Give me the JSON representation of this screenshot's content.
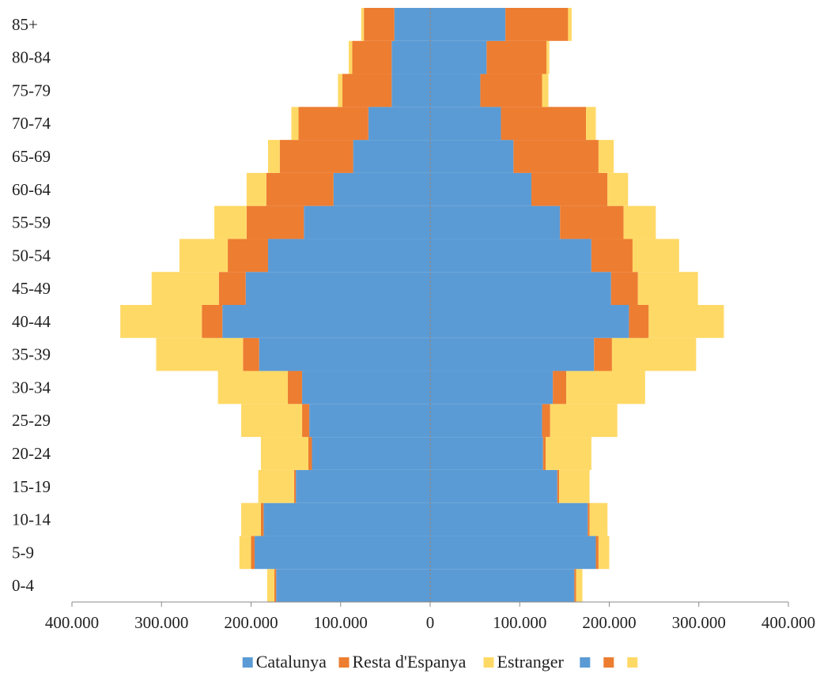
{
  "chart_data": {
    "type": "bar",
    "orientation": "horizontal",
    "layout": "population-pyramid (left side negative, right side positive, stacked)",
    "categories": [
      "0-4",
      "5-9",
      "10-14",
      "15-19",
      "20-24",
      "25-29",
      "30-34",
      "35-39",
      "40-44",
      "45-49",
      "50-54",
      "55-59",
      "60-64",
      "65-69",
      "70-74",
      "75-79",
      "80-84",
      "85+"
    ],
    "xlim": [
      -400000,
      400000
    ],
    "x_ticks": [
      {
        "value": -400000,
        "label": "400.000"
      },
      {
        "value": -300000,
        "label": "300.000"
      },
      {
        "value": -200000,
        "label": "200.000"
      },
      {
        "value": -100000,
        "label": "100.000"
      },
      {
        "value": 0,
        "label": "0"
      },
      {
        "value": 100000,
        "label": "100.000"
      },
      {
        "value": 200000,
        "label": "200.000"
      },
      {
        "value": 300000,
        "label": "300.000"
      },
      {
        "value": 400000,
        "label": "400.000"
      }
    ],
    "colors": {
      "Catalunya": "#5b9bd5",
      "Resta d'Espanya": "#ed7d31",
      "Estranger": "#ffd966"
    },
    "left_series": [
      {
        "name": "Catalunya",
        "values": [
          -172000,
          -196000,
          -186000,
          -150000,
          -132000,
          -135000,
          -143000,
          -191000,
          -232000,
          -206000,
          -181000,
          -141000,
          -108000,
          -86000,
          -69000,
          -43000,
          -43000,
          -40000
        ]
      },
      {
        "name": "Resta d'Espanya",
        "values": [
          -2000,
          -4000,
          -3000,
          -2000,
          -4000,
          -8000,
          -16000,
          -18000,
          -23000,
          -30000,
          -45000,
          -64000,
          -75000,
          -82000,
          -78000,
          -55000,
          -44000,
          -34000
        ]
      },
      {
        "name": "Estranger",
        "values": [
          -8000,
          -13000,
          -22000,
          -40000,
          -53000,
          -68000,
          -78000,
          -97000,
          -91000,
          -75000,
          -54000,
          -36000,
          -22000,
          -13000,
          -8000,
          -5000,
          -4000,
          -3000
        ]
      }
    ],
    "right_series": [
      {
        "name": "",
        "color_key": "Catalunya",
        "values": [
          161000,
          185000,
          176000,
          142000,
          126000,
          125000,
          137000,
          183000,
          222000,
          202000,
          180000,
          145000,
          113000,
          93000,
          79000,
          56000,
          63000,
          84000
        ]
      },
      {
        "name": "",
        "color_key": "Resta d'Espanya",
        "values": [
          2000,
          3000,
          2000,
          2000,
          3000,
          9000,
          15000,
          20000,
          22000,
          30000,
          46000,
          71000,
          85000,
          95000,
          95000,
          69000,
          67000,
          70000
        ]
      },
      {
        "name": "",
        "color_key": "Estranger",
        "values": [
          7000,
          12000,
          20000,
          34000,
          51000,
          75000,
          88000,
          94000,
          84000,
          67000,
          52000,
          36000,
          23000,
          17000,
          11000,
          7000,
          3000,
          4000
        ]
      }
    ],
    "legend": {
      "position": "bottom-center",
      "entries": [
        "Catalunya",
        "Resta d'Espanya",
        "Estranger",
        "",
        "",
        ""
      ],
      "entry_colors": [
        "#5b9bd5",
        "#ed7d31",
        "#ffd966",
        "#5b9bd5",
        "#ed7d31",
        "#ffd966"
      ]
    },
    "grid": false
  }
}
